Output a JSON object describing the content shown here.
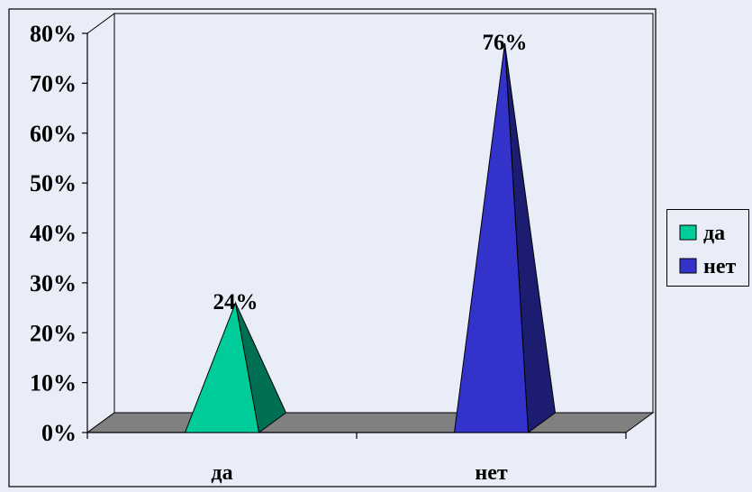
{
  "chart_data": {
    "type": "bar",
    "style": "3d-pyramid",
    "categories": [
      "да",
      "нет"
    ],
    "series": [
      {
        "values": [
          0.24,
          0.76
        ],
        "colors": [
          "#00cc99",
          "#3333cc"
        ]
      }
    ],
    "data_labels": [
      "24%",
      "76%"
    ],
    "y_ticks": [
      "0%",
      "10%",
      "20%",
      "30%",
      "40%",
      "50%",
      "60%",
      "70%",
      "80%"
    ],
    "ylim": [
      0,
      0.8
    ],
    "grid": false,
    "legend": {
      "position": "right",
      "entries": [
        {
          "label": "да",
          "color": "#00cc99"
        },
        {
          "label": "нет",
          "color": "#3333cc"
        }
      ]
    },
    "title": "",
    "xlabel": "",
    "ylabel": ""
  }
}
